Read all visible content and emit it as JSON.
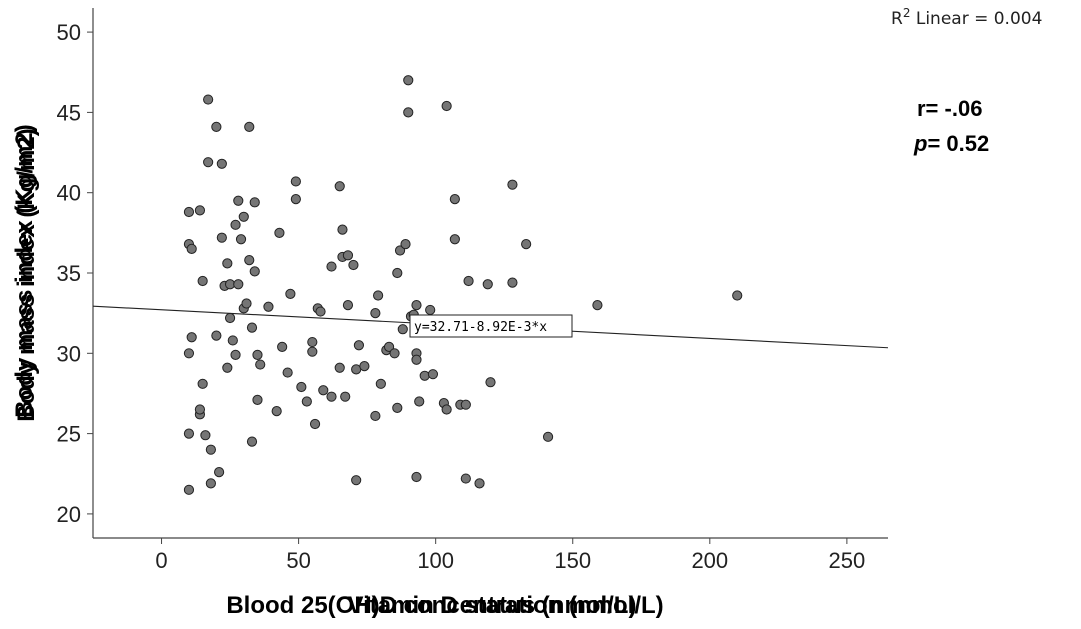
{
  "chart_data": {
    "type": "scatter",
    "title": "",
    "xlabel": "Blood 25(OH)D concentration (nmol/L)",
    "xlabel_overlay": "Vitamin D status (nmol/L)",
    "ylabel": "Body mass index (Kg/m2)",
    "ylabel_overlay": "Body mass index (Kg/m2)",
    "xlim": [
      -25,
      265
    ],
    "ylim": [
      18.5,
      51.5
    ],
    "xticks": [
      0,
      50,
      100,
      150,
      200,
      250
    ],
    "yticks": [
      20,
      25,
      30,
      35,
      40,
      45,
      50
    ],
    "grid": false,
    "point_color": "#757575",
    "point_edge_color": "#222222",
    "fit_line": {
      "intercept": 32.71,
      "slope": -0.00892,
      "label": "y=32.71-8.92E-3*x"
    },
    "r2": {
      "prefix": "R",
      "sup": "2",
      "text": " Linear = 0.004"
    },
    "stats": {
      "r_text": "r= -.06",
      "p_letter": "p",
      "p_value": "= 0.52"
    },
    "points": [
      [
        10,
        21.5
      ],
      [
        10,
        25
      ],
      [
        10,
        30
      ],
      [
        10,
        36.8
      ],
      [
        10,
        38.8
      ],
      [
        11,
        36.5
      ],
      [
        11,
        31
      ],
      [
        14,
        26.2
      ],
      [
        14,
        26.5
      ],
      [
        14,
        38.9
      ],
      [
        15,
        28.1
      ],
      [
        15,
        34.5
      ],
      [
        16,
        24.9
      ],
      [
        17,
        45.8
      ],
      [
        17,
        41.9
      ],
      [
        18,
        24
      ],
      [
        18,
        21.9
      ],
      [
        20,
        44.1
      ],
      [
        20,
        31.1
      ],
      [
        21,
        22.6
      ],
      [
        22,
        37.2
      ],
      [
        22,
        41.8
      ],
      [
        23,
        34.2
      ],
      [
        24,
        29.1
      ],
      [
        24,
        35.6
      ],
      [
        25,
        32.2
      ],
      [
        25,
        34.3
      ],
      [
        26,
        30.8
      ],
      [
        27,
        29.9
      ],
      [
        27,
        38.0
      ],
      [
        28,
        39.5
      ],
      [
        28,
        34.3
      ],
      [
        29,
        37.1
      ],
      [
        30,
        38.5
      ],
      [
        30,
        32.8
      ],
      [
        31,
        33.1
      ],
      [
        32,
        44.1
      ],
      [
        32,
        35.8
      ],
      [
        33,
        31.6
      ],
      [
        33,
        24.5
      ],
      [
        34,
        35.1
      ],
      [
        34,
        39.4
      ],
      [
        35,
        29.9
      ],
      [
        35,
        27.1
      ],
      [
        36,
        29.3
      ],
      [
        39,
        32.9
      ],
      [
        42,
        26.4
      ],
      [
        43,
        37.5
      ],
      [
        44,
        30.4
      ],
      [
        46,
        28.8
      ],
      [
        47,
        33.7
      ],
      [
        49,
        39.6
      ],
      [
        49,
        40.7
      ],
      [
        51,
        27.9
      ],
      [
        53,
        27.0
      ],
      [
        55,
        30.1
      ],
      [
        55,
        30.7
      ],
      [
        56,
        25.6
      ],
      [
        57,
        32.8
      ],
      [
        58,
        32.6
      ],
      [
        59,
        27.7
      ],
      [
        62,
        27.3
      ],
      [
        62,
        35.4
      ],
      [
        65,
        29.1
      ],
      [
        65,
        40.4
      ],
      [
        66,
        36.0
      ],
      [
        66,
        37.7
      ],
      [
        68,
        33.0
      ],
      [
        68,
        36.1
      ],
      [
        67,
        27.3
      ],
      [
        70,
        35.5
      ],
      [
        71,
        29.0
      ],
      [
        71,
        22.1
      ],
      [
        72,
        30.5
      ],
      [
        74,
        29.2
      ],
      [
        78,
        32.5
      ],
      [
        78,
        26.1
      ],
      [
        79,
        33.6
      ],
      [
        80,
        28.1
      ],
      [
        82,
        30.2
      ],
      [
        83,
        30.4
      ],
      [
        85,
        30.0
      ],
      [
        86,
        35.0
      ],
      [
        86,
        26.6
      ],
      [
        87,
        36.4
      ],
      [
        88,
        31.5
      ],
      [
        89,
        36.8
      ],
      [
        90,
        45.0
      ],
      [
        90,
        47.0
      ],
      [
        91,
        32.3
      ],
      [
        92,
        32.4
      ],
      [
        93,
        33.0
      ],
      [
        93,
        30.0
      ],
      [
        93,
        29.6
      ],
      [
        93,
        22.3
      ],
      [
        94,
        27.0
      ],
      [
        96,
        28.6
      ],
      [
        98,
        32.7
      ],
      [
        99,
        28.7
      ],
      [
        103,
        26.9
      ],
      [
        104,
        26.5
      ],
      [
        104,
        45.4
      ],
      [
        107,
        39.6
      ],
      [
        107,
        37.1
      ],
      [
        109,
        26.8
      ],
      [
        111,
        26.8
      ],
      [
        111,
        22.2
      ],
      [
        112,
        34.5
      ],
      [
        116,
        21.9
      ],
      [
        119,
        34.3
      ],
      [
        120,
        28.2
      ],
      [
        128,
        40.5
      ],
      [
        128,
        34.4
      ],
      [
        133,
        36.8
      ],
      [
        141,
        24.8
      ],
      [
        159,
        33.0
      ],
      [
        210,
        33.6
      ]
    ]
  }
}
